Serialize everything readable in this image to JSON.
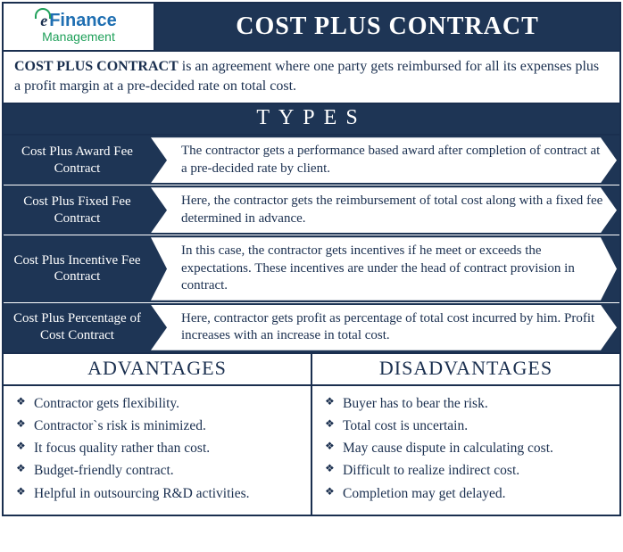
{
  "colors": {
    "navy": "#1e3555",
    "border": "#1a2f4f",
    "white": "#ffffff",
    "logo_blue": "#1f6fb2",
    "logo_green": "#1fa05a"
  },
  "logo": {
    "e": "e",
    "finance": "Finance",
    "management": "Management"
  },
  "title": "COST PLUS CONTRACT",
  "definition_bold": "COST PLUS CONTRACT",
  "definition_rest": " is an agreement where one party gets reimbursed for all its expenses plus a profit margin at a pre-decided rate on total cost.",
  "types_header": "TYPES",
  "types": [
    {
      "name": "Cost Plus Award Fee Contract",
      "desc": "The contractor gets a performance based award after completion of contract at a pre-decided rate by client."
    },
    {
      "name": "Cost Plus Fixed Fee Contract",
      "desc": "Here, the contractor gets the reimbursement of total cost along with a fixed fee determined in advance."
    },
    {
      "name": "Cost Plus Incentive Fee Contract",
      "desc": "In this case, the contractor gets incentives if he meet or exceeds the expectations. These incentives are under the head of contract provision in contract."
    },
    {
      "name": "Cost Plus Percentage of Cost Contract",
      "desc": "Here, contractor gets profit as percentage of total cost incurred by him. Profit increases with an increase in total cost."
    }
  ],
  "advantages_header": "ADVANTAGES",
  "disadvantages_header": "DISADVANTAGES",
  "advantages": [
    "Contractor gets flexibility.",
    "Contractor`s risk is minimized.",
    "It focus quality rather than cost.",
    "Budget-friendly contract.",
    "Helpful in outsourcing R&D activities."
  ],
  "disadvantages": [
    "Buyer has to bear the risk.",
    "Total cost is uncertain.",
    "May cause dispute in calculating cost.",
    "Difficult to realize indirect cost.",
    "Completion may get delayed."
  ]
}
